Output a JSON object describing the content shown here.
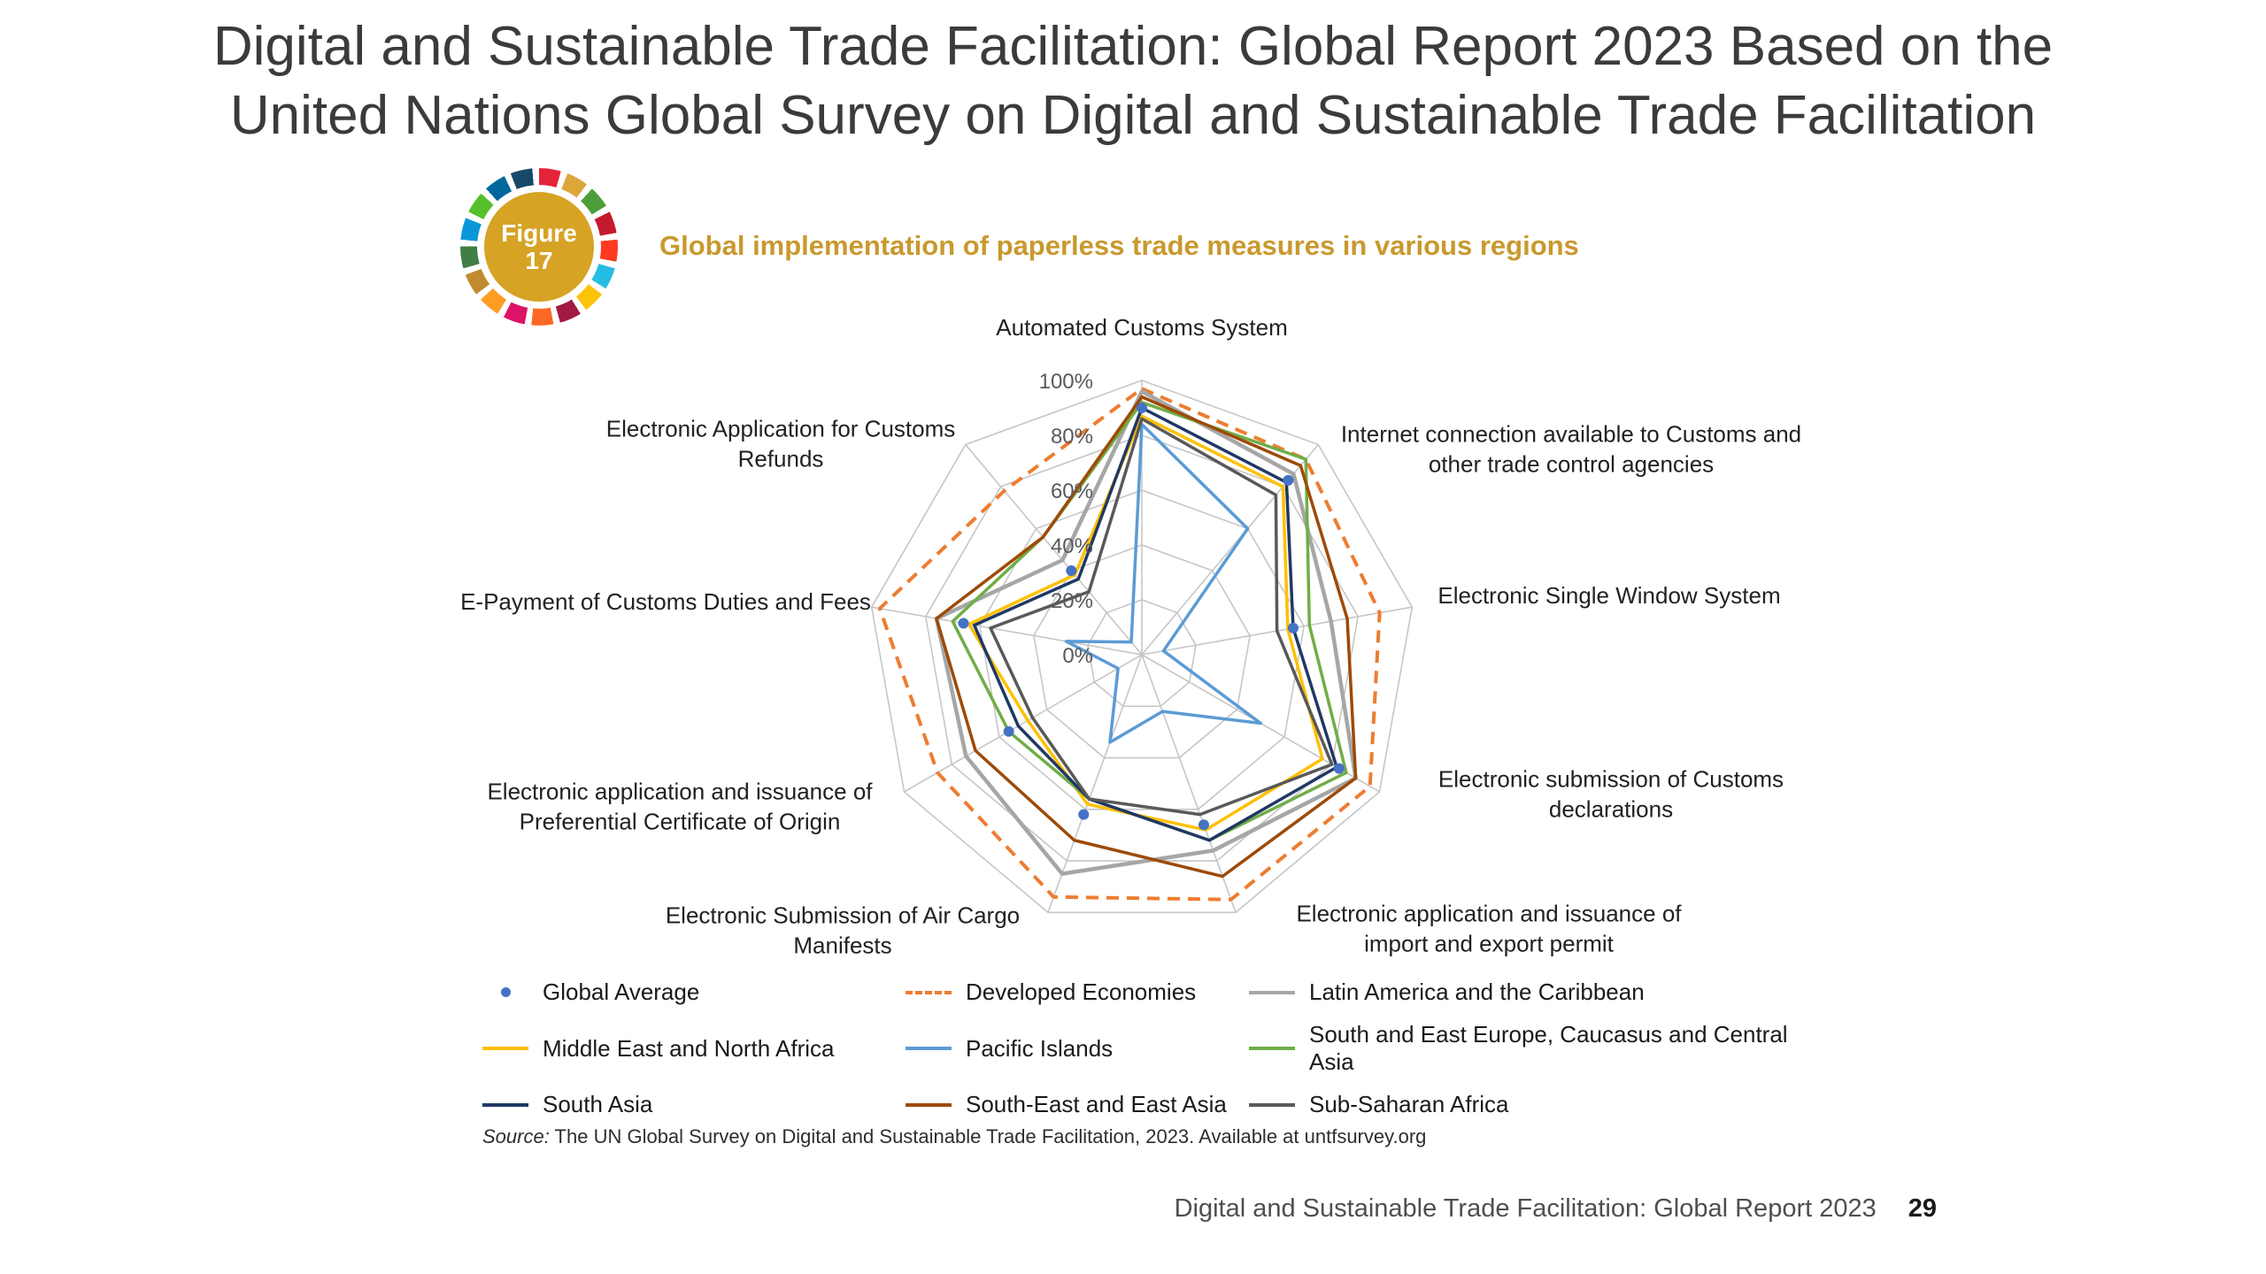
{
  "page": {
    "title_line1": "Digital and Sustainable Trade Facilitation: Global Report 2023 Based on the",
    "title_line2": "United Nations Global Survey on Digital and Sustainable Trade Facilitation",
    "source_prefix": "Source:",
    "source_text": " The UN Global Survey on Digital and Sustainable Trade Facilitation, 2023. Available at untfsurvey.org",
    "footer_text": "Digital and Sustainable Trade Facilitation: Global Report 2023",
    "footer_page_number": "29"
  },
  "figure_badge": {
    "label_line1": "Figure",
    "label_line2": "17",
    "fill_color": "#d6a324",
    "ring_colors": [
      "#E5243B",
      "#DDA63A",
      "#4C9F38",
      "#C5192D",
      "#FF3A21",
      "#26BDE2",
      "#FCC30B",
      "#A21942",
      "#FD6925",
      "#DD1367",
      "#FD9D24",
      "#BF8B2E",
      "#3F7E44",
      "#0A97D9",
      "#56C02B",
      "#00689D",
      "#19486A"
    ]
  },
  "chart_data": {
    "type": "radar",
    "title": "Global implementation of paperless trade measures in various regions",
    "title_color": "#c9992e",
    "axis_range": [
      0,
      100
    ],
    "ticks": [
      0,
      20,
      40,
      60,
      80,
      100
    ],
    "tick_suffix": "%",
    "grid": true,
    "legend_position": "bottom",
    "categories": [
      "Automated Customs System",
      "Internet connection available to Customs and other trade control agencies",
      "Electronic Single Window System",
      "Electronic submission of Customs declarations",
      "Electronic application and issuance of import and export permit",
      "Electronic Submission of Air Cargo Manifests",
      "Electronic application and issuance of Preferential Certificate of Origin",
      "E-Payment of Customs Duties and Fees",
      "Electronic Application for Customs Refunds"
    ],
    "series": [
      {
        "name": "Global Average",
        "color": "#4472c4",
        "style": "dots",
        "values": [
          90,
          83,
          56,
          83,
          66,
          62,
          56,
          66,
          40
        ]
      },
      {
        "name": "Developed Economies",
        "color": "#ed7d31",
        "style": "dashed",
        "width": 4,
        "values": [
          97,
          93,
          88,
          96,
          95,
          94,
          86,
          97,
          78
        ]
      },
      {
        "name": "Latin America and the Caribbean",
        "color": "#a6a6a6",
        "style": "solid",
        "width": 4.5,
        "values": [
          96,
          86,
          70,
          90,
          76,
          85,
          74,
          76,
          45
        ]
      },
      {
        "name": "Middle East and North Africa",
        "color": "#ffc000",
        "style": "solid",
        "width": 3.5,
        "values": [
          87,
          80,
          54,
          76,
          68,
          58,
          48,
          64,
          38
        ]
      },
      {
        "name": "Pacific Islands",
        "color": "#5b9bd5",
        "style": "solid",
        "width": 3.5,
        "values": [
          84,
          60,
          8,
          50,
          22,
          34,
          10,
          28,
          6
        ]
      },
      {
        "name": "South and East Europe, Caucasus and Central Asia",
        "color": "#70ad47",
        "style": "solid",
        "width": 3.5,
        "values": [
          92,
          93,
          62,
          86,
          72,
          56,
          56,
          70,
          56
        ]
      },
      {
        "name": "South Asia",
        "color": "#203864",
        "style": "solid",
        "width": 3.5,
        "values": [
          90,
          82,
          56,
          82,
          72,
          56,
          52,
          62,
          36
        ]
      },
      {
        "name": "South-East and East Asia",
        "color": "#9e4a06",
        "style": "solid",
        "width": 3.5,
        "values": [
          94,
          90,
          76,
          90,
          86,
          72,
          70,
          76,
          56
        ]
      },
      {
        "name": "Sub-Saharan Africa",
        "color": "#595959",
        "style": "solid",
        "width": 3.5,
        "values": [
          86,
          76,
          50,
          80,
          62,
          56,
          46,
          56,
          30
        ]
      }
    ]
  }
}
